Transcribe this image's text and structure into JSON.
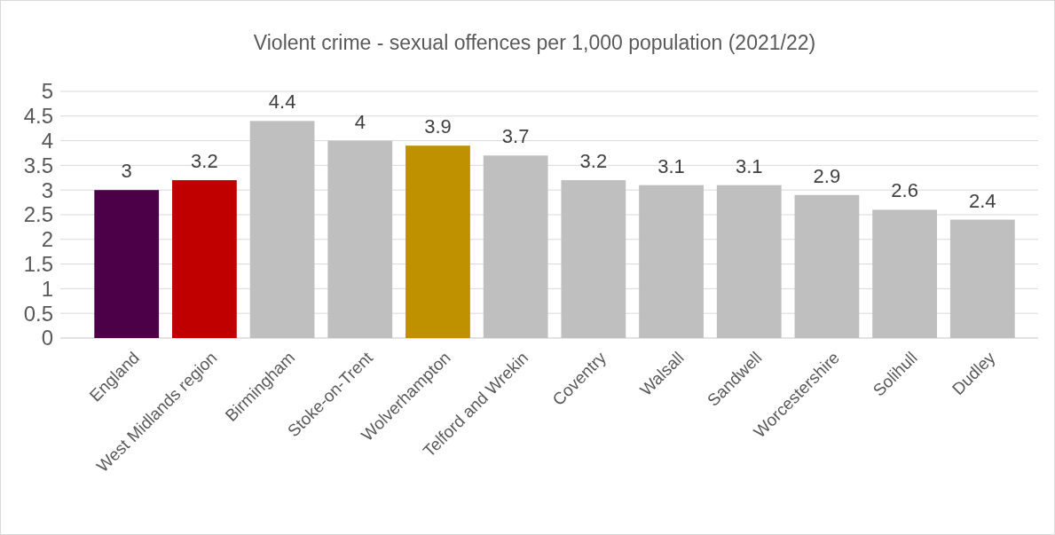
{
  "chart_data": {
    "type": "bar",
    "title": "Violent crime - sexual offences per 1,000 population (2021/22)",
    "categories": [
      "England",
      "West Midlands region",
      "Birmingham",
      "Stoke-on-Trent",
      "Wolverhampton",
      "Telford and Wrekin",
      "Coventry",
      "Walsall",
      "Sandwell",
      "Worcestershire",
      "Solihull",
      "Dudley"
    ],
    "values": [
      3,
      3.2,
      4.4,
      4,
      3.9,
      3.7,
      3.2,
      3.1,
      3.1,
      2.9,
      2.6,
      2.4
    ],
    "colors": [
      "#4b0048",
      "#c00000",
      "#bfbfbf",
      "#bfbfbf",
      "#bf9000",
      "#bfbfbf",
      "#bfbfbf",
      "#bfbfbf",
      "#bfbfbf",
      "#bfbfbf",
      "#bfbfbf",
      "#bfbfbf"
    ],
    "ylim": [
      0,
      5
    ],
    "yticks": [
      0,
      0.5,
      1,
      1.5,
      2,
      2.5,
      3,
      3.5,
      4,
      4.5,
      5
    ],
    "grid": "y",
    "data_labels": true
  }
}
